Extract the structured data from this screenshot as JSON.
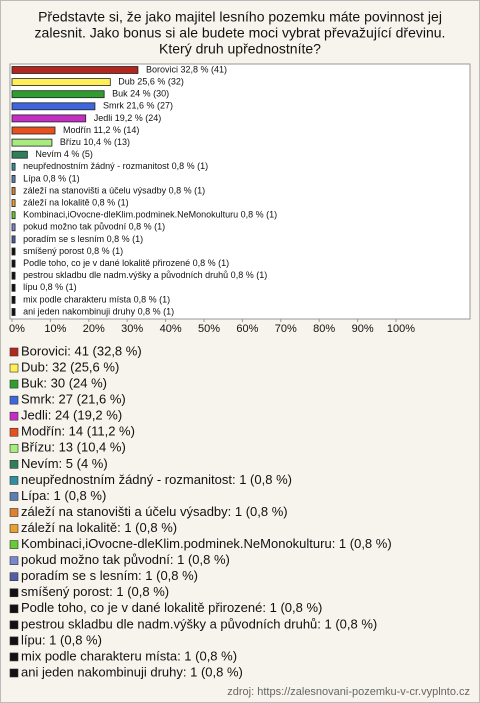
{
  "chart_data": {
    "type": "bar",
    "orientation": "horizontal",
    "title": [
      "Představte si, že jako majitel lesního pozemku máte povinnost jej",
      "zalesnit. Jako bonus si ale budete moci vybrat převažující dřevinu.",
      "Který druh upřednostníte?"
    ],
    "categories": [
      "Borovici",
      "Dub",
      "Buk",
      "Smrk",
      "Jedli",
      "Modřín",
      "Břízu",
      "Nevím",
      "neupřednostním žádný - rozmanitost",
      "Lípa",
      "záleží na stanovišti a účelu výsadby",
      "záleží na lokalitě",
      "Kombinaci,iOvocne-dleKlim.podminek.NeMonokulturu",
      "pokud možno tak původní",
      "poradím se s lesním",
      "smíšený porost",
      "Podle toho, co je v dané lokalitě přirozené",
      "pestrou skladbu dle nadm.výšky a původních druhů",
      "lípu",
      "mix podle charakteru místa",
      "ani jeden nakombinuji druhy"
    ],
    "values": [
      32.8,
      25.6,
      24,
      21.6,
      19.2,
      11.2,
      10.4,
      4,
      0.8,
      0.8,
      0.8,
      0.8,
      0.8,
      0.8,
      0.8,
      0.8,
      0.8,
      0.8,
      0.8,
      0.8,
      0.8
    ],
    "value_labels": [
      "Borovici 32,8 % (41)",
      "Dub 25,6 % (32)",
      "Buk 24 % (30)",
      "Smrk 21,6 % (27)",
      "Jedli 19,2 % (24)",
      "Modřín 11,2 % (14)",
      "Břízu 10,4 % (13)",
      "Nevím 4 % (5)",
      "neupřednostním žádný - rozmanitost 0,8 % (1)",
      "Lípa 0,8 % (1)",
      "záleží na stanovišti a účelu výsadby 0,8 % (1)",
      "záleží na lokalitě 0,8 % (1)",
      "Kombinaci,iOvocne-dleKlim.podminek.NeMonokulturu 0,8 % (1)",
      "pokud možno tak původní 0,8 % (1)",
      "poradím se s lesním 0,8 % (1)",
      "smíšený porost 0,8 % (1)",
      "Podle toho, co je v dané lokalitě přirozené 0,8 % (1)",
      "pestrou skladbu dle nadm.výšky a původních druhů 0,8 % (1)",
      "lípu 0,8 % (1)",
      "mix podle charakteru místa 0,8 % (1)",
      "ani jeden nakombinuji druhy 0,8 % (1)"
    ],
    "legend_labels": [
      "Borovici: 41 (32,8 %)",
      "Dub: 32 (25,6 %)",
      "Buk: 30 (24 %)",
      "Smrk: 27 (21,6 %)",
      "Jedli: 24 (19,2 %)",
      "Modřín: 14 (11,2 %)",
      "Břízu: 13 (10,4 %)",
      "Nevím: 5 (4 %)",
      "neupřednostním žádný - rozmanitost: 1 (0,8 %)",
      "Lípa: 1 (0,8 %)",
      "záleží na stanovišti a účelu výsadby: 1 (0,8 %)",
      "záleží na lokalitě: 1 (0,8 %)",
      "Kombinaci,iOvocne-dleKlim.podminek.NeMonokulturu: 1 (0,8 %)",
      "pokud možno tak původní: 1 (0,8 %)",
      "poradím se s lesním: 1 (0,8 %)",
      "smíšený porost: 1 (0,8 %)",
      "Podle toho, co je v dané lokalitě přirozené: 1 (0,8 %)",
      "pestrou skladbu dle nadm.výšky a původních druhů: 1 (0,8 %)",
      "lípu: 1 (0,8 %)",
      "mix podle charakteru místa: 1 (0,8 %)",
      "ani jeden nakombinuji druhy: 1 (0,8 %)"
    ],
    "colors": [
      "#b3261e",
      "#ffee55",
      "#2e9e2e",
      "#3f66dd",
      "#c22fc2",
      "#e8501e",
      "#a8ec80",
      "#2f7f5a",
      "#2f8fa0",
      "#5a7fb0",
      "#e07f30",
      "#e8a030",
      "#66cc33",
      "#7788cc",
      "#4f5fa8",
      "#111111",
      "#111111",
      "#111111",
      "#111111",
      "#111111",
      "#111111"
    ],
    "xlim": [
      0,
      100
    ],
    "xticks": [
      {
        "value": 0,
        "label": "0%"
      },
      {
        "value": 10,
        "label": "10%"
      },
      {
        "value": 20,
        "label": "20%"
      },
      {
        "value": 30,
        "label": "30%"
      },
      {
        "value": 40,
        "label": "40%"
      },
      {
        "value": 50,
        "label": "50%"
      },
      {
        "value": 60,
        "label": "60%"
      },
      {
        "value": 70,
        "label": "70%"
      },
      {
        "value": 80,
        "label": "80%"
      },
      {
        "value": 90,
        "label": "90%"
      },
      {
        "value": 100,
        "label": "100%"
      }
    ],
    "grid": false,
    "source": "zdroj: https://zalesnovani-pozemku-v-cr.vyplnto.cz"
  }
}
